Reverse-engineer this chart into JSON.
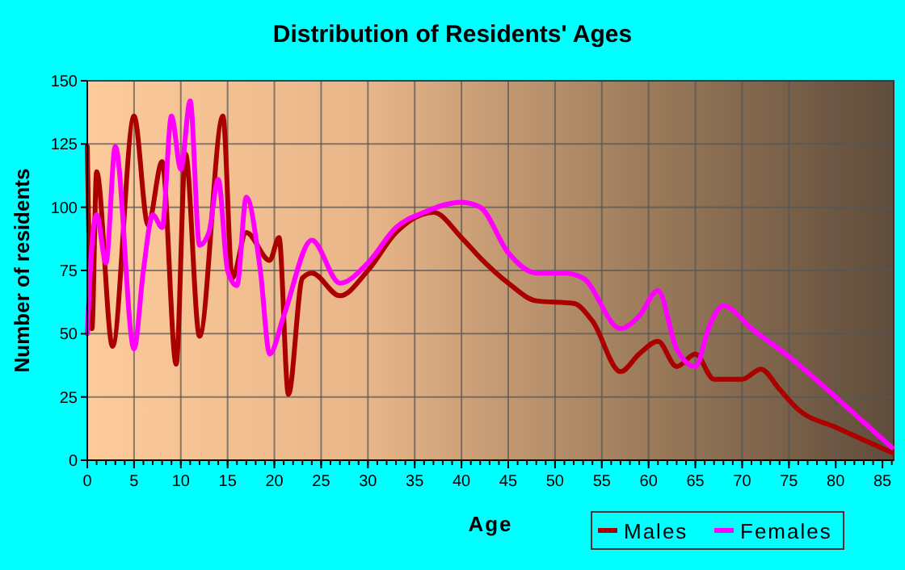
{
  "chart_data": {
    "type": "line",
    "title": "Distribution of Residents' Ages",
    "xlabel": "Age",
    "ylabel": "Number of residents",
    "xlim": [
      0,
      86.2
    ],
    "xticks": [
      0,
      5,
      10,
      15,
      20,
      25,
      30,
      35,
      40,
      45,
      50,
      55,
      60,
      65,
      70,
      75,
      80,
      85
    ],
    "ylim": [
      0,
      150
    ],
    "yticks": [
      0,
      25,
      50,
      75,
      100,
      125,
      150
    ],
    "grid": true,
    "legend": "bottom right",
    "marker": "none",
    "line_style": "solid",
    "series": [
      {
        "name": "Males",
        "color": "#aa0000",
        "x": [
          0,
          0.5,
          1,
          2.7,
          5,
          6.5,
          8,
          9.5,
          10.5,
          12,
          14.5,
          15.5,
          17,
          19.5,
          20.5,
          21.5,
          23,
          24,
          27,
          30,
          33,
          37,
          40,
          42,
          45,
          48,
          52,
          54,
          57,
          59,
          61,
          63,
          65,
          67,
          70,
          72,
          74,
          76,
          80,
          83,
          86
        ],
        "values": [
          124,
          52,
          114,
          45,
          136,
          93,
          118,
          38,
          121,
          49,
          136,
          72,
          90,
          79,
          88,
          26,
          72,
          74,
          65,
          75,
          90,
          98,
          88,
          80,
          70,
          63,
          62,
          55,
          35,
          42,
          47,
          37,
          42,
          32,
          32,
          36,
          28,
          20,
          13,
          8,
          3
        ]
      },
      {
        "name": "Females",
        "color": "#ff00ff",
        "x": [
          0,
          0.5,
          1,
          2,
          3,
          5,
          6,
          7,
          8,
          9,
          10,
          11,
          12,
          13,
          14,
          15,
          16,
          17,
          18.5,
          19.5,
          21,
          24,
          27,
          30,
          33,
          36,
          40,
          42,
          45,
          48,
          51,
          53,
          57,
          59,
          61,
          63,
          65,
          66.5,
          68,
          71,
          75,
          80,
          83,
          86
        ],
        "values": [
          50,
          85,
          97,
          78,
          124,
          44,
          75,
          97,
          92,
          136,
          115,
          142,
          85,
          90,
          111,
          75,
          69,
          104,
          75,
          42,
          57,
          87,
          70,
          78,
          92,
          98,
          102,
          100,
          82,
          74,
          74,
          72,
          52,
          57,
          67,
          44,
          37,
          53,
          61,
          52,
          41,
          25,
          15,
          5
        ]
      }
    ]
  }
}
